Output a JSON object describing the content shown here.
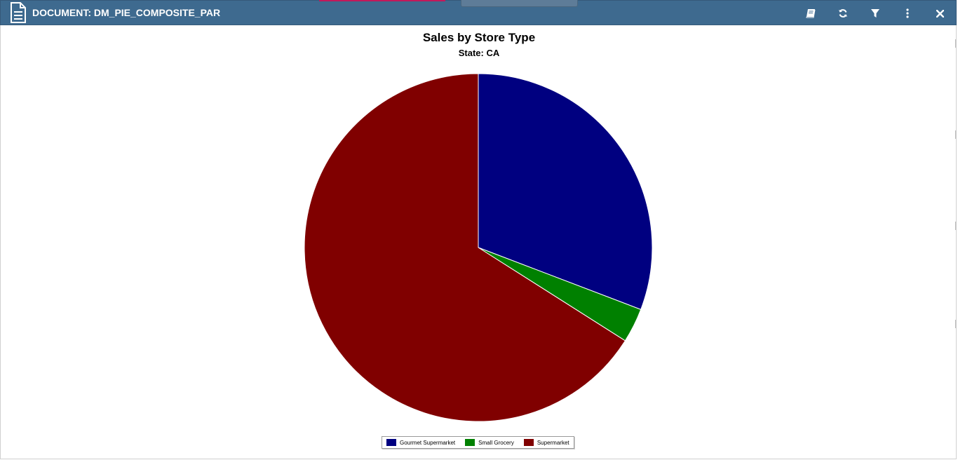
{
  "window": {
    "title": "DOCUMENT: DM_PIE_COMPOSITE_PAR"
  },
  "toolbar": {
    "buttons": [
      {
        "name": "book-icon",
        "glyph": "book"
      },
      {
        "name": "refresh-icon",
        "glyph": "refresh"
      },
      {
        "name": "filter-icon",
        "glyph": "filter"
      },
      {
        "name": "more-icon",
        "glyph": "more"
      },
      {
        "name": "close-icon",
        "glyph": "close"
      }
    ]
  },
  "chart_data": {
    "type": "pie",
    "title": "Sales by Store Type",
    "subtitle": "State: CA",
    "categories": [
      "Gourmet Supermarket",
      "Small Grocery",
      "Supermarket"
    ],
    "values": [
      30.8,
      3.2,
      66.0
    ],
    "colors": [
      "#000080",
      "#008000",
      "#800000"
    ],
    "start_angle_deg": 0,
    "direction": "clockwise",
    "legend_position": "bottom-center"
  }
}
